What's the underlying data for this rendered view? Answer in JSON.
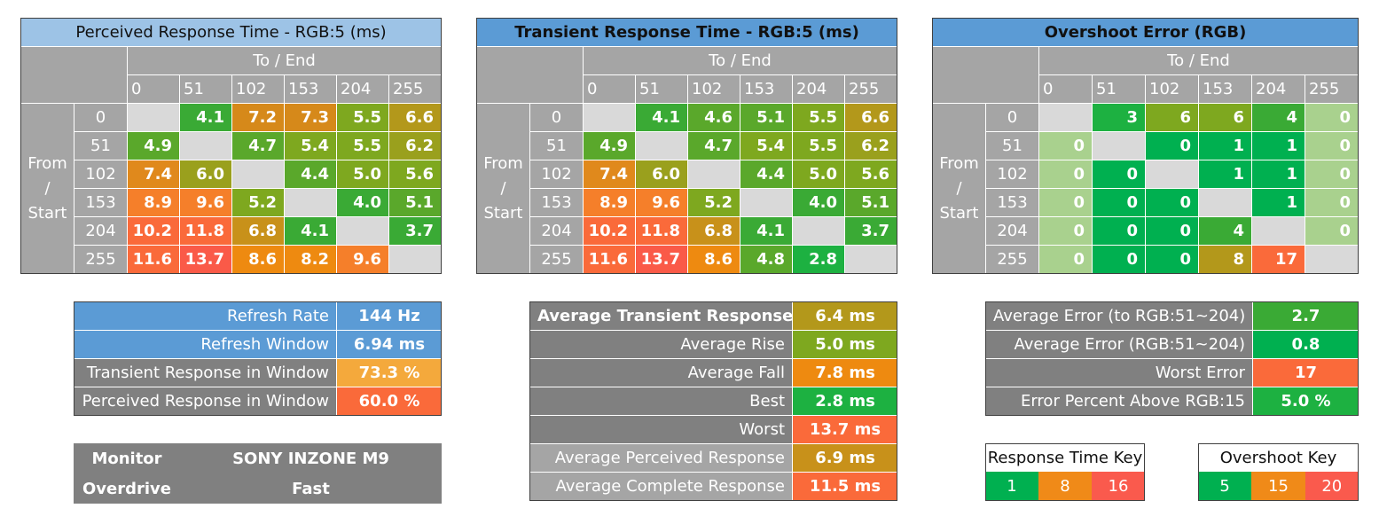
{
  "colors": {
    "header_light": "#9dc3e6",
    "header_blue": "#5b9bd5",
    "header_grey": "#a5a5a5",
    "label_grey": "#808080",
    "diagonal": "#d9d9d9"
  },
  "axis": {
    "to_end": "To / End",
    "from_start": "From / Start",
    "levels": [
      "0",
      "51",
      "102",
      "153",
      "204",
      "255"
    ]
  },
  "chart_data": [
    {
      "type": "heatmap",
      "title": "Perceived Response Time - RGB:5 (ms)",
      "x": [
        "0",
        "51",
        "102",
        "153",
        "204",
        "255"
      ],
      "y": [
        "0",
        "51",
        "102",
        "153",
        "204",
        "255"
      ],
      "xlabel": "To / End",
      "ylabel": "From / Start",
      "values": [
        [
          "",
          "4.1",
          "7.2",
          "7.3",
          "5.5",
          "6.6"
        ],
        [
          "4.9",
          "",
          "4.7",
          "5.4",
          "5.5",
          "6.2"
        ],
        [
          "7.4",
          "6.0",
          "",
          "4.4",
          "5.0",
          "5.6"
        ],
        [
          "8.9",
          "9.6",
          "5.2",
          "",
          "4.0",
          "5.1"
        ],
        [
          "10.2",
          "11.8",
          "6.8",
          "4.1",
          "",
          "3.7"
        ],
        [
          "11.6",
          "13.7",
          "8.6",
          "8.2",
          "9.6",
          ""
        ]
      ],
      "colors": [
        [
          "",
          "#3aaa35",
          "#d6891a",
          "#d6891a",
          "#7ea81f",
          "#b3981b"
        ],
        [
          "#5aa82b",
          "",
          "#5aa82b",
          "#7ea81f",
          "#7ea81f",
          "#9aa01d"
        ],
        [
          "#e0891c",
          "#9aa01d",
          "",
          "#5aa82b",
          "#7ea81f",
          "#7ea81f"
        ],
        [
          "#f57f2a",
          "#f57f2a",
          "#7ea81f",
          "",
          "#3aaa35",
          "#5aa82b"
        ],
        [
          "#fa6a3a",
          "#fa6a3a",
          "#c8911a",
          "#3aaa35",
          "",
          "#3aaa35"
        ],
        [
          "#fa6a3a",
          "#fa5a48",
          "#ee8a10",
          "#ee8a10",
          "#f57f2a",
          ""
        ]
      ]
    },
    {
      "type": "heatmap",
      "title": "Transient Response Time - RGB:5 (ms)",
      "x": [
        "0",
        "51",
        "102",
        "153",
        "204",
        "255"
      ],
      "y": [
        "0",
        "51",
        "102",
        "153",
        "204",
        "255"
      ],
      "xlabel": "To / End",
      "ylabel": "From / Start",
      "values": [
        [
          "",
          "4.1",
          "4.6",
          "5.1",
          "5.5",
          "6.6"
        ],
        [
          "4.9",
          "",
          "4.7",
          "5.4",
          "5.5",
          "6.2"
        ],
        [
          "7.4",
          "6.0",
          "",
          "4.4",
          "5.0",
          "5.6"
        ],
        [
          "8.9",
          "9.6",
          "5.2",
          "",
          "4.0",
          "5.1"
        ],
        [
          "10.2",
          "11.8",
          "6.8",
          "4.1",
          "",
          "3.7"
        ],
        [
          "11.6",
          "13.7",
          "8.6",
          "4.8",
          "2.8",
          ""
        ]
      ],
      "colors": [
        [
          "",
          "#3aaa35",
          "#5aa82b",
          "#5aa82b",
          "#7ea81f",
          "#b3981b"
        ],
        [
          "#5aa82b",
          "",
          "#5aa82b",
          "#7ea81f",
          "#7ea81f",
          "#9aa01d"
        ],
        [
          "#e0891c",
          "#9aa01d",
          "",
          "#5aa82b",
          "#7ea81f",
          "#7ea81f"
        ],
        [
          "#f57f2a",
          "#f57f2a",
          "#7ea81f",
          "",
          "#3aaa35",
          "#5aa82b"
        ],
        [
          "#fa6a3a",
          "#fa6a3a",
          "#c8911a",
          "#3aaa35",
          "",
          "#3aaa35"
        ],
        [
          "#fa6a3a",
          "#fa5a48",
          "#ee8a10",
          "#5aa82b",
          "#1db141",
          ""
        ]
      ]
    },
    {
      "type": "heatmap",
      "title": "Overshoot Error (RGB)",
      "x": [
        "0",
        "51",
        "102",
        "153",
        "204",
        "255"
      ],
      "y": [
        "0",
        "51",
        "102",
        "153",
        "204",
        "255"
      ],
      "xlabel": "To / End",
      "ylabel": "From / Start",
      "values": [
        [
          "",
          "3",
          "6",
          "6",
          "4",
          "0"
        ],
        [
          "0",
          "",
          "0",
          "1",
          "1",
          "0"
        ],
        [
          "0",
          "0",
          "",
          "1",
          "1",
          "0"
        ],
        [
          "0",
          "0",
          "0",
          "",
          "1",
          "0"
        ],
        [
          "0",
          "0",
          "0",
          "4",
          "",
          "0"
        ],
        [
          "0",
          "0",
          "0",
          "8",
          "17",
          ""
        ]
      ],
      "colors": [
        [
          "",
          "#1db141",
          "#7ea81f",
          "#7ea81f",
          "#3aaa35",
          "#a9d18e"
        ],
        [
          "#a9d18e",
          "",
          "#00b050",
          "#00b050",
          "#00b050",
          "#a9d18e"
        ],
        [
          "#a9d18e",
          "#00b050",
          "",
          "#00b050",
          "#00b050",
          "#a9d18e"
        ],
        [
          "#a9d18e",
          "#00b050",
          "#00b050",
          "",
          "#00b050",
          "#a9d18e"
        ],
        [
          "#a9d18e",
          "#00b050",
          "#00b050",
          "#3aaa35",
          "",
          "#a9d18e"
        ],
        [
          "#a9d18e",
          "#00b050",
          "#00b050",
          "#b3981b",
          "#fa6a3a",
          ""
        ]
      ]
    }
  ],
  "refresh_panel": [
    {
      "label": "Refresh Rate",
      "value": "144 Hz",
      "label_color": "#5b9bd5",
      "value_color": "#5b9bd5"
    },
    {
      "label": "Refresh Window",
      "value": "6.94 ms",
      "label_color": "#5b9bd5",
      "value_color": "#5b9bd5"
    },
    {
      "label": "Transient Response in Window",
      "value": "73.3 %",
      "label_color": "#808080",
      "value_color": "#f4a93c"
    },
    {
      "label": "Perceived Response in Window",
      "value": "60.0 %",
      "label_color": "#808080",
      "value_color": "#fa6a3a"
    }
  ],
  "monitor_panel": {
    "monitor_label": "Monitor",
    "monitor_value": "SONY INZONE M9",
    "overdrive_label": "Overdrive",
    "overdrive_value": "Fast"
  },
  "average_panel": [
    {
      "label": "Average Transient Response",
      "value": "6.4 ms",
      "bold": true,
      "label_color": "#808080",
      "value_color": "#b3981b"
    },
    {
      "label": "Average Rise",
      "value": "5.0 ms",
      "bold": false,
      "label_color": "#808080",
      "value_color": "#7ea81f"
    },
    {
      "label": "Average Fall",
      "value": "7.8 ms",
      "bold": false,
      "label_color": "#808080",
      "value_color": "#ee8a10"
    },
    {
      "label": "Best",
      "value": "2.8 ms",
      "bold": false,
      "label_color": "#808080",
      "value_color": "#1db141"
    },
    {
      "label": "Worst",
      "value": "13.7 ms",
      "bold": false,
      "label_color": "#808080",
      "value_color": "#fa6a3a"
    },
    {
      "label": "Average Perceived Response",
      "value": "6.9 ms",
      "bold": false,
      "label_color": "#a5a5a5",
      "value_color": "#c8911a"
    },
    {
      "label": "Average Complete Response",
      "value": "11.5 ms",
      "bold": false,
      "label_color": "#a5a5a5",
      "value_color": "#fa6a3a"
    }
  ],
  "error_panel": [
    {
      "label": "Average Error (to RGB:51~204)",
      "value": "2.7",
      "label_color": "#808080",
      "value_color": "#3aaa35"
    },
    {
      "label": "Average Error (RGB:51~204)",
      "value": "0.8",
      "label_color": "#808080",
      "value_color": "#00b050"
    },
    {
      "label": "Worst Error",
      "value": "17",
      "label_color": "#808080",
      "value_color": "#fa6a3a"
    },
    {
      "label": "Error Percent Above RGB:15",
      "value": "5.0 %",
      "label_color": "#808080",
      "value_color": "#1db141"
    }
  ],
  "response_key": {
    "title": "Response Time Key",
    "items": [
      {
        "value": "1",
        "color": "#00b050"
      },
      {
        "value": "8",
        "color": "#f08a18"
      },
      {
        "value": "16",
        "color": "#fa5a4d"
      }
    ]
  },
  "overshoot_key": {
    "title": "Overshoot Key",
    "items": [
      {
        "value": "5",
        "color": "#00b050"
      },
      {
        "value": "15",
        "color": "#f08a18"
      },
      {
        "value": "20",
        "color": "#fa5a4d"
      }
    ]
  }
}
